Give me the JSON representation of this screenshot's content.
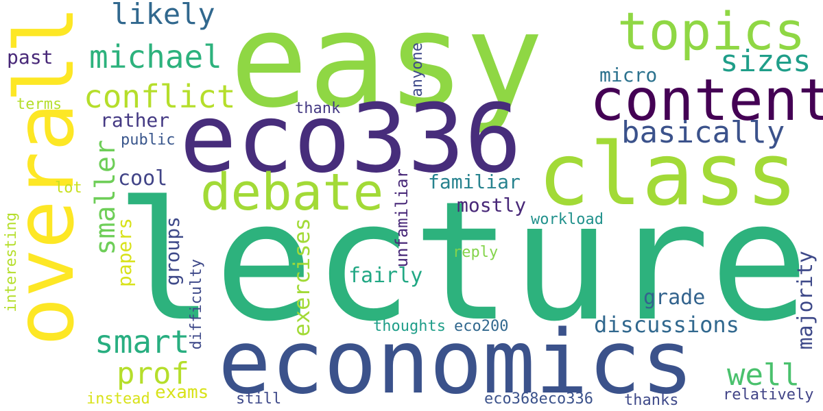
{
  "cloud": {
    "words": [
      {
        "text": "lecture",
        "color": "#2db27d"
      },
      {
        "text": "easy",
        "color": "#8fd744"
      },
      {
        "text": "economics",
        "color": "#3b528b"
      },
      {
        "text": "eco336",
        "color": "#472d7b"
      },
      {
        "text": "class",
        "color": "#a2da37"
      },
      {
        "text": "overall",
        "color": "#fde725"
      },
      {
        "text": "content",
        "color": "#440154"
      },
      {
        "text": "topics",
        "color": "#8fd744"
      },
      {
        "text": "debate",
        "color": "#a2da37"
      },
      {
        "text": "conflict",
        "color": "#b5de2b"
      },
      {
        "text": "michael",
        "color": "#2db27d"
      },
      {
        "text": "smart",
        "color": "#28ae80"
      },
      {
        "text": "basically",
        "color": "#3b528b"
      },
      {
        "text": "likely",
        "color": "#31688e"
      },
      {
        "text": "sizes",
        "color": "#1f9e89"
      },
      {
        "text": "prof",
        "color": "#b5de2b"
      },
      {
        "text": "well",
        "color": "#4ac16d"
      },
      {
        "text": "smaller",
        "color": "#6ece58"
      },
      {
        "text": "discussions",
        "color": "#31688e"
      },
      {
        "text": "exercises",
        "color": "#a2da37"
      },
      {
        "text": "familiar",
        "color": "#26828e"
      },
      {
        "text": "mostly",
        "color": "#482878"
      },
      {
        "text": "fairly",
        "color": "#22a884"
      },
      {
        "text": "grade",
        "color": "#33638d"
      },
      {
        "text": "majority",
        "color": "#3e4989"
      },
      {
        "text": "groups",
        "color": "#3e4989"
      },
      {
        "text": "papers",
        "color": "#d8e219"
      },
      {
        "text": "exams",
        "color": "#d8e219"
      },
      {
        "text": "micro",
        "color": "#2c728e"
      },
      {
        "text": "rather",
        "color": "#443983"
      },
      {
        "text": "cool",
        "color": "#414487"
      },
      {
        "text": "past",
        "color": "#482878"
      },
      {
        "text": "unfamiliar",
        "color": "#482878"
      },
      {
        "text": "relatively",
        "color": "#414487"
      },
      {
        "text": "eco368eco336",
        "color": "#3b528b"
      },
      {
        "text": "terms",
        "color": "#b5de2b"
      },
      {
        "text": "thank",
        "color": "#443983"
      },
      {
        "text": "public",
        "color": "#39568c"
      },
      {
        "text": "anyone",
        "color": "#3e4989"
      },
      {
        "text": "lot",
        "color": "#c8e020"
      },
      {
        "text": "workload",
        "color": "#21918c"
      },
      {
        "text": "reply",
        "color": "#84d44b"
      },
      {
        "text": "thoughts",
        "color": "#1f9e89"
      },
      {
        "text": "eco200",
        "color": "#31688e"
      },
      {
        "text": "difficulty",
        "color": "#3e4989"
      },
      {
        "text": "interesting",
        "color": "#b5de2b"
      },
      {
        "text": "instead",
        "color": "#d8e219"
      },
      {
        "text": "still",
        "color": "#3e4989"
      },
      {
        "text": "thanks",
        "color": "#3e4989"
      }
    ]
  }
}
